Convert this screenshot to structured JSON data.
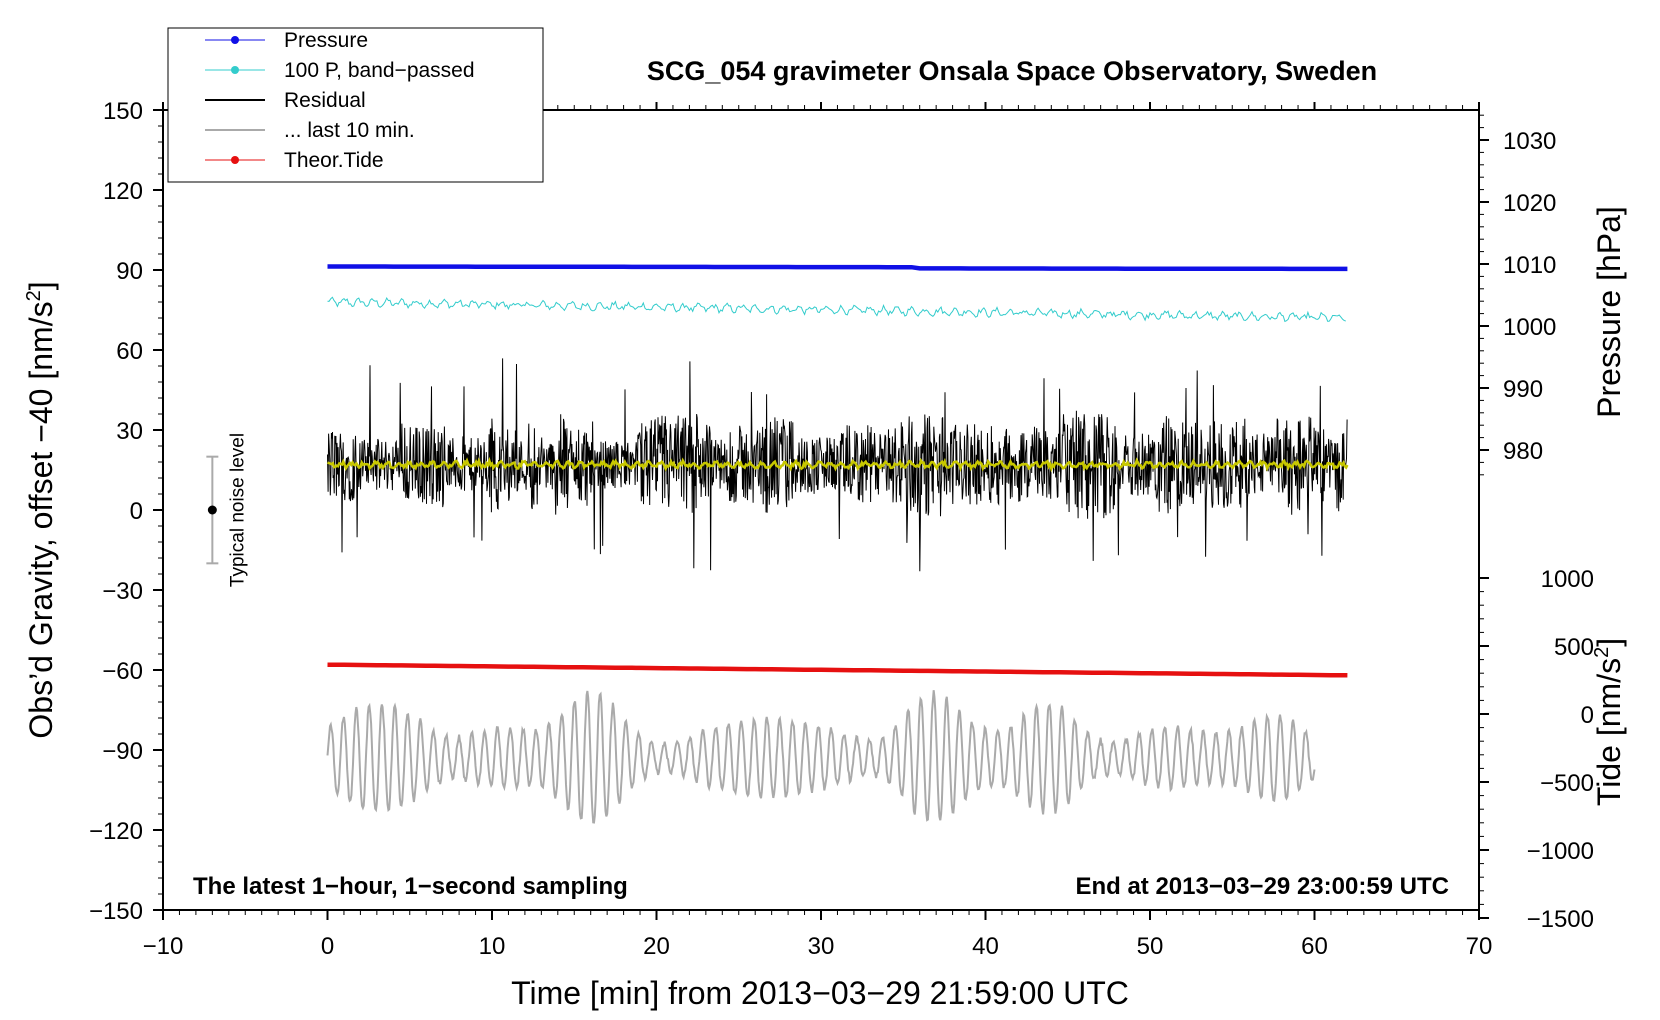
{
  "chart_data": {
    "type": "line",
    "title": "SCG_054 gravimeter Onsala Space Observatory, Sweden",
    "xlabel": "Time [min] from 2013−03−29 21:59:00 UTC",
    "ylabel": "Obs’d Gravity, offset −40 [nm/s²]",
    "ylabel_prefix": "Obs’d Gravity, offset −40 [nm/s",
    "ylabel_suffix": "]",
    "y2label": "Pressure [hPa]",
    "y3label": "Tide [nm/s²]",
    "y3label_prefix": "Tide [nm/s",
    "y3label_suffix": "]",
    "unit_superscript": "2",
    "xlim": [
      -10,
      70
    ],
    "ylim": [
      -150,
      150
    ],
    "xticks": [
      -10,
      0,
      10,
      20,
      30,
      40,
      50,
      60,
      70
    ],
    "xtick_labels": [
      "−10",
      "0",
      "10",
      "20",
      "30",
      "40",
      "50",
      "60",
      "70"
    ],
    "yticks": [
      150,
      120,
      90,
      60,
      30,
      0,
      -30,
      -60,
      -90,
      -120,
      -150
    ],
    "ytick_labels": [
      "150",
      "120",
      "90",
      "60",
      "30",
      "0",
      "−30",
      "−60",
      "−90",
      "−120",
      "−150"
    ],
    "pressure_axis": {
      "range_hpa": [
        976,
        1034
      ],
      "ticks": [
        1030,
        1020,
        1010,
        1000,
        990,
        980
      ],
      "tick_labels": [
        "1030",
        "1020",
        "1010",
        "1000",
        "990",
        "980"
      ]
    },
    "tide_axis": {
      "range_nm_s2": [
        -1500,
        1000
      ],
      "ticks": [
        1000,
        500,
        0,
        -500,
        -1000,
        -1500
      ],
      "tick_labels": [
        "1000",
        "500",
        "0",
        "−500",
        "−1000",
        "−1500"
      ]
    },
    "legend": [
      {
        "name": "Pressure",
        "color": "#1010e6",
        "marker": true
      },
      {
        "name": "100 P, band−passed",
        "color": "#33cccc",
        "marker": true
      },
      {
        "name": "Residual",
        "color": "#000000",
        "marker": false
      },
      {
        "name": "... last 10 min.",
        "color": "#aaaaaa",
        "marker": false
      },
      {
        "name": "Theor.Tide",
        "color": "#e61010",
        "marker": true
      }
    ],
    "legend_position": "top-left",
    "series": [
      {
        "name": "Pressure",
        "axis": "pressure",
        "x_range": [
          0,
          62
        ],
        "start_hpa": 1009.6,
        "end_hpa": 1009.4
      },
      {
        "name": "100 P, band−passed",
        "axis": "gravity",
        "x_range": [
          0,
          62
        ],
        "start": 78,
        "end": 72
      },
      {
        "name": "Residual",
        "axis": "gravity",
        "x_range": [
          0,
          62
        ],
        "mean": 17,
        "min": -27,
        "max": 57
      },
      {
        "name": "Residual smoothed",
        "color": "#c8c800",
        "axis": "gravity",
        "x_range": [
          0,
          62
        ],
        "mean": 17
      },
      {
        "name": "... last 10 min.",
        "axis": "gravity",
        "x_range": [
          0,
          60
        ],
        "center": -93,
        "min": -130,
        "max": -57
      },
      {
        "name": "Theor.Tide",
        "axis": "gravity",
        "x_range": [
          0,
          62
        ],
        "start": -58,
        "end": -62
      }
    ],
    "noise_bar": {
      "label": "Typical noise level",
      "x": -7,
      "center": 0,
      "low": -20,
      "high": 20
    },
    "annotations": {
      "left": "The latest 1−hour, 1−second sampling",
      "right": "End at 2013−03−29 23:00:59 UTC"
    }
  }
}
